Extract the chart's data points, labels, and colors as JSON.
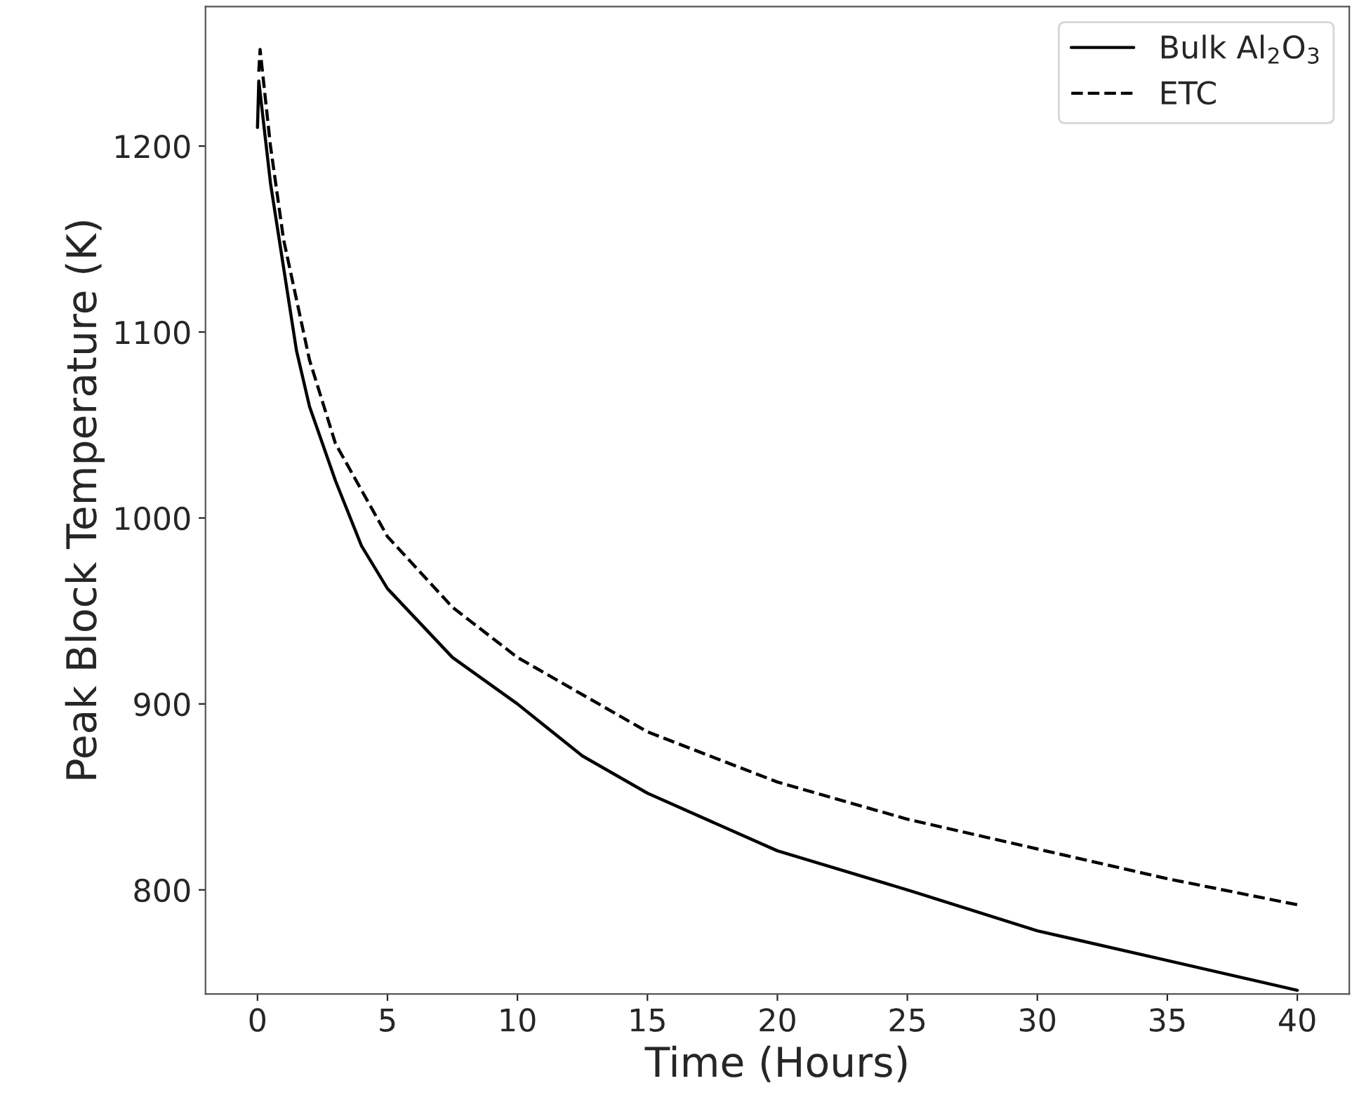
{
  "chart_data": {
    "type": "line",
    "xlabel": "Time (Hours)",
    "ylabel": "Peak Block Temperature (K)",
    "xlim": [
      -2,
      42
    ],
    "ylim": [
      744,
      1275
    ],
    "xticks": [
      0,
      5,
      10,
      15,
      20,
      25,
      30,
      35,
      40
    ],
    "yticks": [
      800,
      900,
      1000,
      1100,
      1200
    ],
    "grid": false,
    "legend": "top right",
    "series": [
      {
        "name": "Bulk Al$_{2}$O$_{3}$",
        "color": "#000000",
        "line_style": "solid",
        "x": [
          0,
          0.05,
          0.5,
          1,
          1.5,
          2,
          3,
          4,
          5,
          7.5,
          10,
          12.5,
          15,
          20,
          25,
          30,
          35,
          40
        ],
        "values": [
          1210,
          1235,
          1180,
          1135,
          1090,
          1060,
          1020,
          985,
          962,
          925,
          900,
          872,
          852,
          821,
          800,
          778,
          762,
          746
        ]
      },
      {
        "name": "ETC",
        "color": "#000000",
        "line_style": "dashed",
        "x": [
          0.05,
          0.1,
          0.5,
          1,
          2,
          3,
          5,
          7.5,
          10,
          15,
          20,
          25,
          30,
          35,
          40
        ],
        "values": [
          1240,
          1252,
          1200,
          1150,
          1085,
          1040,
          990,
          952,
          925,
          885,
          858,
          838,
          822,
          806,
          792
        ]
      }
    ]
  }
}
